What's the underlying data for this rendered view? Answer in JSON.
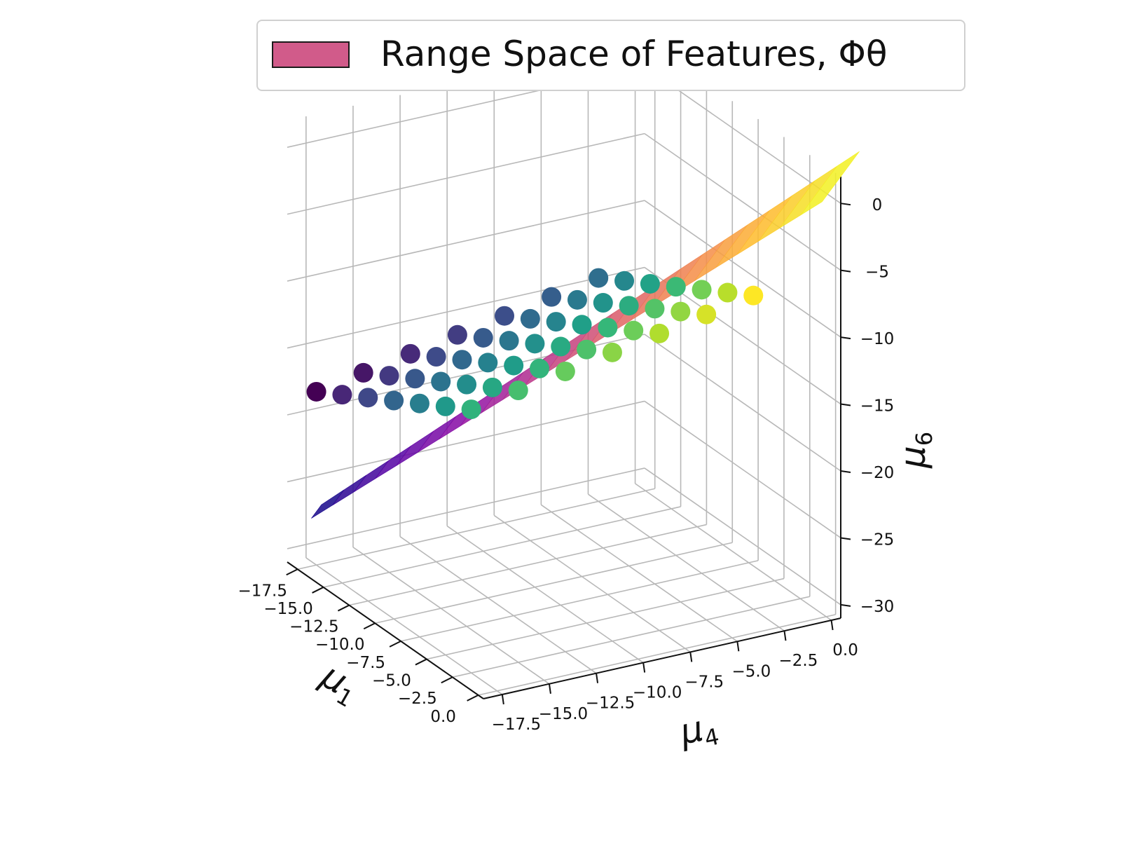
{
  "chart_data": {
    "type": "scatter3d",
    "legend": {
      "entries": [
        {
          "label": "Range Space of Features, Φθ",
          "color": "#d15b8a"
        }
      ],
      "placement": "top-center"
    },
    "axes": {
      "x": {
        "label_base": "μ",
        "label_sub": "1",
        "ticks": [
          "−17.5",
          "−15.0",
          "−12.5",
          "−10.0",
          "−7.5",
          "−5.0",
          "−2.5",
          "0.0"
        ],
        "range": [
          -18.5,
          0.5
        ]
      },
      "y": {
        "label_base": "μ",
        "label_sub": "4",
        "ticks": [
          "−17.5",
          "−15.0",
          "−12.5",
          "−10.0",
          "−7.5",
          "−5.0",
          "−2.5",
          "0.0"
        ],
        "range": [
          -18.5,
          0.5
        ]
      },
      "z": {
        "label_base": "μ",
        "label_sub": "6",
        "ticks": [
          "−30",
          "−25",
          "−20",
          "−15",
          "−10",
          "−5",
          "0"
        ],
        "range": [
          -31,
          2
        ]
      }
    },
    "grid": true,
    "scatter": {
      "x_values": [
        -17.5,
        -15.0,
        -12.5,
        -10.0,
        -7.5,
        -5.0,
        -2.5
      ],
      "y_values": [
        -17.5,
        -15.0,
        -12.5,
        -10.0,
        -7.5,
        -5.0,
        -2.5
      ],
      "z_formula_coeffs": {
        "a": 0.45,
        "b": 0.25,
        "c": -0.8
      },
      "colormap": "viridis"
    },
    "surface": {
      "label": "Range Space of Features, Φθ",
      "colormap": "plasma",
      "z_range": [
        -27,
        2
      ]
    }
  }
}
